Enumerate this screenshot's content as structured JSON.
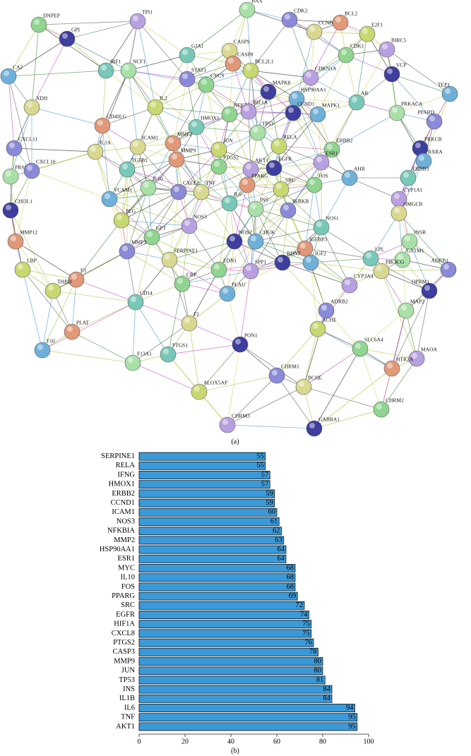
{
  "network": {
    "caption": "(a)",
    "nodes": [
      "DNPEP",
      "TPI1",
      "GPI",
      "CA2",
      "GJA1",
      "BAX",
      "CDK2",
      "CCNB1",
      "BCL2",
      "E2F1",
      "CDK1",
      "BIRC5",
      "VCP",
      "TEP1",
      "IRF1",
      "NCF1",
      "STAT1",
      "CASP9",
      "CASP8",
      "BCL2L1",
      "CYCS",
      "CDKN1A",
      "MAPK8",
      "HSP90AA1",
      "AR",
      "PRKACA",
      "PPARD",
      "XDH",
      "CD40LG",
      "IL2",
      "NFKBIA",
      "HIF1A",
      "CCND1",
      "MAPK1",
      "HMOX1",
      "TP53",
      "CXCL11",
      "ICAM1",
      "MMP2",
      "RELA",
      "ERBB2",
      "ESR1",
      "PRKCB",
      "RXRA",
      "ERBB3",
      "PRSS1",
      "CXCL10",
      "IL1A",
      "MMP9",
      "JUN",
      "PTGS2",
      "AKT1",
      "EGFR",
      "AHR",
      "TGFB1",
      "IL10",
      "CXCL8",
      "TNF",
      "PPARG",
      "SRC",
      "FOS",
      "CYP1A1",
      "CHI3L1",
      "VCAM1",
      "IL6",
      "INS",
      "IKBKB",
      "HMGCR",
      "MMP12",
      "PLG",
      "GPT",
      "NOS3",
      "NOS2",
      "CHUK",
      "NOS1",
      "INSR",
      "MMP3",
      "SERPINE1",
      "IGFBP3",
      "LBP",
      "EDN1",
      "SPP1",
      "BDNF",
      "IGF2",
      "LPL",
      "GSTM1",
      "ADRB1",
      "PIK3CG",
      "F3",
      "THBD",
      "CRP",
      "CYP3A4",
      "OPRM1",
      "PLAU",
      "CD14",
      "MAP2",
      "ADRB2",
      "F2",
      "PLAT",
      "ACHE",
      "SLC6A4",
      "MAOA",
      "PON1",
      "F10",
      "PTGS1",
      "F13A1",
      "CHRM1",
      "BCHE",
      "HTR2A",
      "ALOX5AP",
      "CHRM2",
      "CHRM3",
      "GABRA1"
    ]
  },
  "chart_data": {
    "type": "bar",
    "orientation": "horizontal",
    "caption": "(b)",
    "categories": [
      "SERPINE1",
      "RELA",
      "IFNG",
      "HMOX1",
      "ERBB2",
      "CCND1",
      "ICAM1",
      "NOS3",
      "NFKBIA",
      "MMP2",
      "HSP90AA1",
      "ESR1",
      "MYC",
      "IL10",
      "FOS",
      "PPARG",
      "SRC",
      "EGFR",
      "HIF1A",
      "CXCL8",
      "PTGS2",
      "CASP3",
      "MMP9",
      "JUN",
      "TP53",
      "INS",
      "IL1B",
      "IL6",
      "TNF",
      "AKT1"
    ],
    "values": [
      55,
      55,
      57,
      57,
      59,
      59,
      60,
      61,
      62,
      63,
      64,
      64,
      68,
      68,
      68,
      69,
      72,
      74,
      75,
      75,
      76,
      78,
      80,
      80,
      81,
      84,
      84,
      94,
      95,
      95
    ],
    "color": "#3a9ad9",
    "xlim": [
      0,
      100
    ],
    "xticks": [
      0,
      20,
      40,
      60,
      80,
      100
    ]
  }
}
